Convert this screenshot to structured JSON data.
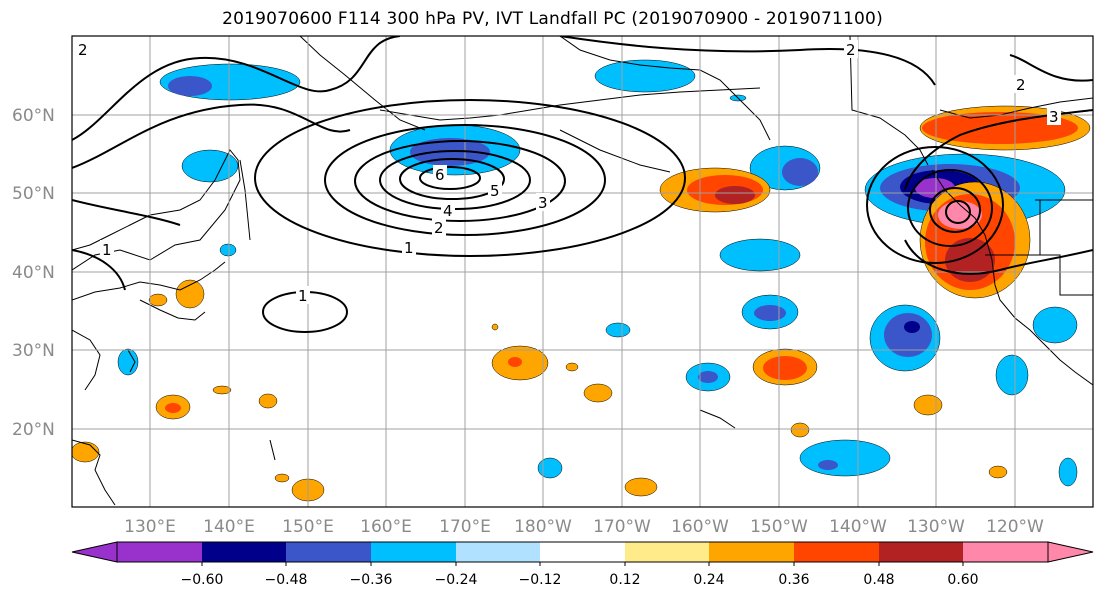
{
  "figure": {
    "title": "2019070600 F114 300 hPa PV, IVT Landfall PC (2019070900 - 2019071100)"
  },
  "map": {
    "lat_labels": [
      "60°N",
      "50°N",
      "40°N",
      "30°N",
      "20°N"
    ],
    "lon_labels": [
      "130°E",
      "140°E",
      "150°E",
      "160°E",
      "170°E",
      "180°W",
      "170°W",
      "160°W",
      "150°W",
      "140°W",
      "130°W",
      "120°W"
    ],
    "contour_labels": [
      "2",
      "2",
      "2",
      "1",
      "1",
      "1",
      "2",
      "3",
      "4",
      "5",
      "6",
      "3"
    ]
  },
  "colorbar": {
    "colors": [
      "#9932CC",
      "#00008B",
      "#3A56C8",
      "#00BFFF",
      "#B0E2FF",
      "#FFFFFF",
      "#FFEB8A",
      "#FFA500",
      "#FF4500",
      "#B22222",
      "#FF88AA"
    ],
    "tick_labels": [
      "−0.60",
      "−0.48",
      "−0.36",
      "−0.24",
      "−0.12",
      "0.12",
      "0.24",
      "0.36",
      "0.48",
      "0.60"
    ]
  }
}
